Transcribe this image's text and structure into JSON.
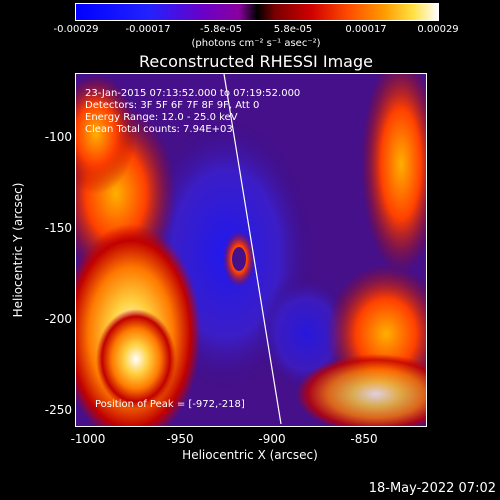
{
  "colorbar": {
    "ticks": [
      "-0.00029",
      "-0.00017",
      "-5.8e-05",
      "5.8e-05",
      "0.00017",
      "0.00029"
    ],
    "units": "(photons cm⁻² s⁻¹ asec⁻²)",
    "colors": [
      "#0000ff",
      "#6a00c8",
      "#000000",
      "#d00000",
      "#ff9a00",
      "#ffffff"
    ]
  },
  "title": "Reconstructed RHESSI Image",
  "info": {
    "time": "23-Jan-2015 07:13:52.000 to 07:19:52.000",
    "detectors": "Detectors: 3F 5F 6F 7F 8F 9F, Att 0",
    "energy": "Energy Range: 12.0 - 25.0 keV",
    "method": "Clean   Total counts: 7.94E+03",
    "peak": "Position of Peak = [-972,-218]"
  },
  "axes": {
    "xlabel": "Heliocentric X (arcsec)",
    "ylabel": "Heliocentric Y (arcsec)",
    "xticks": [
      "-1000",
      "-950",
      "-900",
      "-850"
    ],
    "yticks": [
      "-100",
      "-150",
      "-200",
      "-250"
    ]
  },
  "timestamp": "18-May-2022 07:02"
}
